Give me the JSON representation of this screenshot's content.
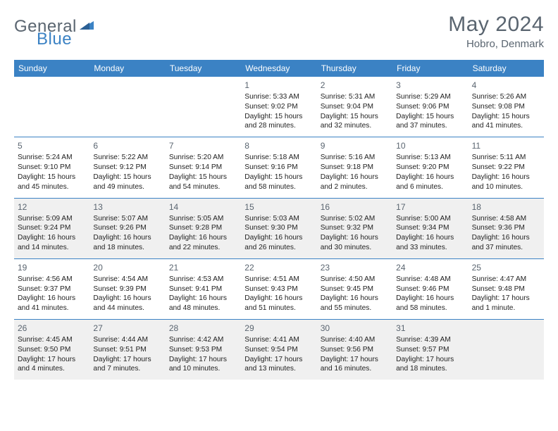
{
  "logo": {
    "text1": "General",
    "text2": "Blue"
  },
  "title": "May 2024",
  "location": "Hobro, Denmark",
  "colors": {
    "header_bg": "#3b82c4",
    "header_text": "#ffffff",
    "body_text": "#222222",
    "muted_text": "#5a6570",
    "shade_bg": "#f0f0f0",
    "border": "#3b82c4"
  },
  "layout": {
    "columns": 7,
    "rows": 5,
    "shaded_rows": [
      2,
      4
    ]
  },
  "weekdays": [
    "Sunday",
    "Monday",
    "Tuesday",
    "Wednesday",
    "Thursday",
    "Friday",
    "Saturday"
  ],
  "weeks": [
    [
      null,
      null,
      null,
      {
        "day": "1",
        "sunrise": "5:33 AM",
        "sunset": "9:02 PM",
        "daylight": "15 hours and 28 minutes."
      },
      {
        "day": "2",
        "sunrise": "5:31 AM",
        "sunset": "9:04 PM",
        "daylight": "15 hours and 32 minutes."
      },
      {
        "day": "3",
        "sunrise": "5:29 AM",
        "sunset": "9:06 PM",
        "daylight": "15 hours and 37 minutes."
      },
      {
        "day": "4",
        "sunrise": "5:26 AM",
        "sunset": "9:08 PM",
        "daylight": "15 hours and 41 minutes."
      }
    ],
    [
      {
        "day": "5",
        "sunrise": "5:24 AM",
        "sunset": "9:10 PM",
        "daylight": "15 hours and 45 minutes."
      },
      {
        "day": "6",
        "sunrise": "5:22 AM",
        "sunset": "9:12 PM",
        "daylight": "15 hours and 49 minutes."
      },
      {
        "day": "7",
        "sunrise": "5:20 AM",
        "sunset": "9:14 PM",
        "daylight": "15 hours and 54 minutes."
      },
      {
        "day": "8",
        "sunrise": "5:18 AM",
        "sunset": "9:16 PM",
        "daylight": "15 hours and 58 minutes."
      },
      {
        "day": "9",
        "sunrise": "5:16 AM",
        "sunset": "9:18 PM",
        "daylight": "16 hours and 2 minutes."
      },
      {
        "day": "10",
        "sunrise": "5:13 AM",
        "sunset": "9:20 PM",
        "daylight": "16 hours and 6 minutes."
      },
      {
        "day": "11",
        "sunrise": "5:11 AM",
        "sunset": "9:22 PM",
        "daylight": "16 hours and 10 minutes."
      }
    ],
    [
      {
        "day": "12",
        "sunrise": "5:09 AM",
        "sunset": "9:24 PM",
        "daylight": "16 hours and 14 minutes."
      },
      {
        "day": "13",
        "sunrise": "5:07 AM",
        "sunset": "9:26 PM",
        "daylight": "16 hours and 18 minutes."
      },
      {
        "day": "14",
        "sunrise": "5:05 AM",
        "sunset": "9:28 PM",
        "daylight": "16 hours and 22 minutes."
      },
      {
        "day": "15",
        "sunrise": "5:03 AM",
        "sunset": "9:30 PM",
        "daylight": "16 hours and 26 minutes."
      },
      {
        "day": "16",
        "sunrise": "5:02 AM",
        "sunset": "9:32 PM",
        "daylight": "16 hours and 30 minutes."
      },
      {
        "day": "17",
        "sunrise": "5:00 AM",
        "sunset": "9:34 PM",
        "daylight": "16 hours and 33 minutes."
      },
      {
        "day": "18",
        "sunrise": "4:58 AM",
        "sunset": "9:36 PM",
        "daylight": "16 hours and 37 minutes."
      }
    ],
    [
      {
        "day": "19",
        "sunrise": "4:56 AM",
        "sunset": "9:37 PM",
        "daylight": "16 hours and 41 minutes."
      },
      {
        "day": "20",
        "sunrise": "4:54 AM",
        "sunset": "9:39 PM",
        "daylight": "16 hours and 44 minutes."
      },
      {
        "day": "21",
        "sunrise": "4:53 AM",
        "sunset": "9:41 PM",
        "daylight": "16 hours and 48 minutes."
      },
      {
        "day": "22",
        "sunrise": "4:51 AM",
        "sunset": "9:43 PM",
        "daylight": "16 hours and 51 minutes."
      },
      {
        "day": "23",
        "sunrise": "4:50 AM",
        "sunset": "9:45 PM",
        "daylight": "16 hours and 55 minutes."
      },
      {
        "day": "24",
        "sunrise": "4:48 AM",
        "sunset": "9:46 PM",
        "daylight": "16 hours and 58 minutes."
      },
      {
        "day": "25",
        "sunrise": "4:47 AM",
        "sunset": "9:48 PM",
        "daylight": "17 hours and 1 minute."
      }
    ],
    [
      {
        "day": "26",
        "sunrise": "4:45 AM",
        "sunset": "9:50 PM",
        "daylight": "17 hours and 4 minutes."
      },
      {
        "day": "27",
        "sunrise": "4:44 AM",
        "sunset": "9:51 PM",
        "daylight": "17 hours and 7 minutes."
      },
      {
        "day": "28",
        "sunrise": "4:42 AM",
        "sunset": "9:53 PM",
        "daylight": "17 hours and 10 minutes."
      },
      {
        "day": "29",
        "sunrise": "4:41 AM",
        "sunset": "9:54 PM",
        "daylight": "17 hours and 13 minutes."
      },
      {
        "day": "30",
        "sunrise": "4:40 AM",
        "sunset": "9:56 PM",
        "daylight": "17 hours and 16 minutes."
      },
      {
        "day": "31",
        "sunrise": "4:39 AM",
        "sunset": "9:57 PM",
        "daylight": "17 hours and 18 minutes."
      },
      null
    ]
  ],
  "labels": {
    "sunrise": "Sunrise:",
    "sunset": "Sunset:",
    "daylight": "Daylight:"
  }
}
